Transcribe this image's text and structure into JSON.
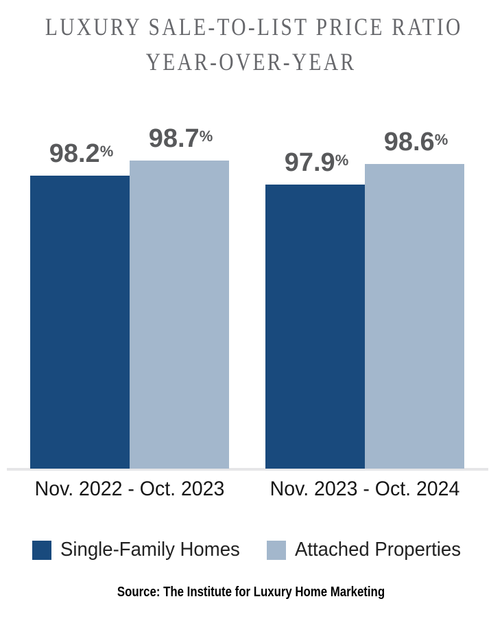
{
  "title": {
    "line1": "LUXURY SALE-TO-LIST PRICE RATIO",
    "line2": "YEAR-OVER-YEAR"
  },
  "chart_data": {
    "type": "bar",
    "title": "Luxury Sale-to-List Price Ratio Year-over-Year",
    "categories": [
      "Nov. 2022 - Oct. 2023",
      "Nov. 2023 - Oct. 2024"
    ],
    "series": [
      {
        "name": "Single-Family Homes",
        "color": "#194A7D",
        "values": [
          98.2,
          97.9
        ]
      },
      {
        "name": "Attached Properties",
        "color": "#A3B7CC",
        "values": [
          98.7,
          98.6
        ]
      }
    ],
    "value_suffix": "%",
    "value_labels": [
      "98.2",
      "98.7",
      "97.9",
      "98.6"
    ],
    "ylim": [
      88.5,
      100
    ],
    "grid": false,
    "legend_position": "bottom",
    "axis_line_color": "#E6E6E8"
  },
  "source": "Source: The Institute for Luxury Home Marketing",
  "colors": {
    "title_text": "#66676B",
    "value_text": "#58595B",
    "category_text": "#161616",
    "background": "#FFFFFF"
  }
}
